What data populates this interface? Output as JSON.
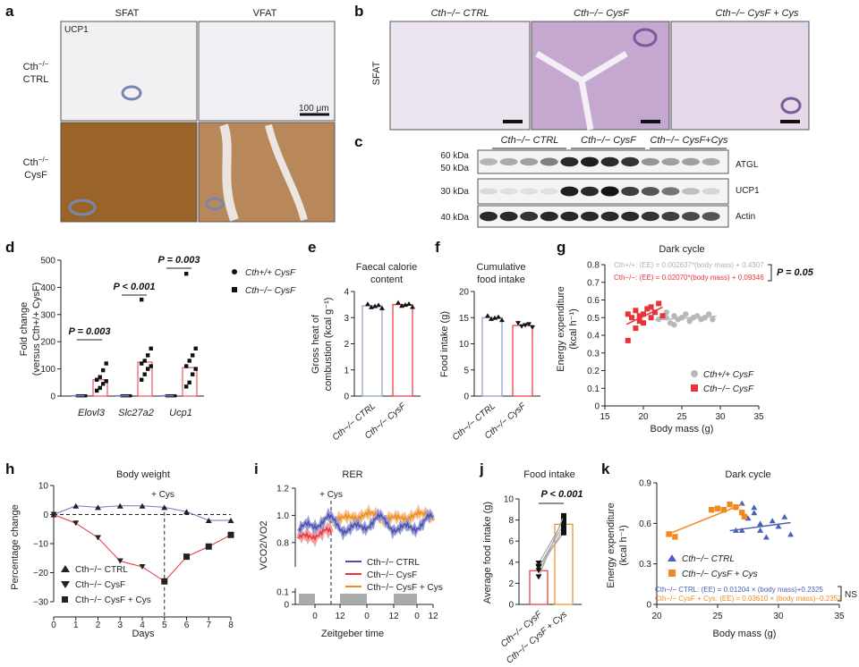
{
  "panels": {
    "a": "a",
    "b": "b",
    "c": "c",
    "d": "d",
    "e": "e",
    "f": "f",
    "g": "g",
    "h": "h",
    "i": "i",
    "j": "j",
    "k": "k"
  },
  "a": {
    "col1": "SFAT",
    "col2": "VFAT",
    "stain": "UCP1",
    "row1_l1": "Cth",
    "row1_sup": "−/−",
    "row1_l2": "CTRL",
    "row2_l1": "Cth",
    "row2_sup": "−/−",
    "row2_l2": "CysF",
    "scale_bar": "100 μm",
    "colors": {
      "ctrl_tissue": "#f1eef2",
      "stained_tissue": "#9c6a2c"
    }
  },
  "b": {
    "col1": "Cth−/− CTRL",
    "col2": "Cth−/− CysF",
    "col3": "Cth−/− CysF + Cys",
    "side": "SFAT",
    "colors": {
      "ctrl": "#ece4f0",
      "cysf": "#c3a9cf"
    }
  },
  "c": {
    "groups": [
      "Cth−/− CTRL",
      "Cth−/− CysF",
      "Cth−/− CysF+Cys"
    ],
    "rows": [
      {
        "kda": [
          "60 kDa",
          "50 kDa"
        ],
        "label": "ATGL",
        "intensity": [
          0.25,
          0.3,
          0.35,
          0.5,
          0.9,
          0.95,
          0.9,
          0.85,
          0.4,
          0.35,
          0.35,
          0.3
        ]
      },
      {
        "kda": [
          "30 kDa"
        ],
        "label": "UCP1",
        "intensity": [
          0.08,
          0.05,
          0.05,
          0.05,
          0.95,
          0.9,
          1.0,
          0.8,
          0.7,
          0.55,
          0.2,
          0.1
        ]
      },
      {
        "kda": [
          "40 kDa"
        ],
        "label": "Actin",
        "intensity": [
          0.9,
          0.9,
          0.85,
          0.9,
          0.9,
          0.9,
          0.9,
          0.9,
          0.85,
          0.8,
          0.75,
          0.7
        ]
      }
    ]
  },
  "d": {
    "ylabel_line1": "Fold change",
    "ylabel_line2": "(versus Cth+/+ CysF)",
    "yticks": [
      "0",
      "100",
      "200",
      "300",
      "400",
      "500"
    ],
    "genes": [
      "Elovl3",
      "Slc27a2",
      "Ucp1"
    ],
    "pvals": [
      "P = 0.003",
      "P < 0.001",
      "P = 0.003"
    ],
    "legend": [
      "Cth+/+ CysF",
      "Cth−/− CysF"
    ],
    "ko_means": [
      60,
      125,
      105
    ],
    "ko_points": [
      [
        20,
        30,
        45,
        55,
        60,
        70,
        95,
        120
      ],
      [
        60,
        80,
        100,
        110,
        120,
        130,
        150,
        175,
        355
      ],
      [
        35,
        50,
        80,
        100,
        110,
        130,
        150,
        175,
        450
      ]
    ]
  },
  "e": {
    "title_l1": "Faecal calorie",
    "title_l2": "content",
    "ylabel_l1": "Gross heat of",
    "ylabel_l2": "combustion (kcal g⁻¹)",
    "yticks": [
      "0",
      "1",
      "2",
      "3",
      "4"
    ],
    "xcats": [
      "Cth−/− CTRL",
      "Cth−/− CysF"
    ],
    "values": [
      3.45,
      3.5
    ]
  },
  "f": {
    "title_l1": "Cumulative",
    "title_l2": "food intake",
    "ylabel": "Food intake (g)",
    "yticks": [
      "0",
      "5",
      "10",
      "15",
      "20"
    ],
    "xcats": [
      "Cth−/− CTRL",
      "Cth−/− CysF"
    ],
    "values": [
      15,
      13.5
    ]
  },
  "g": {
    "title": "Dark cycle",
    "ylabel_l1": "Energy expenditure",
    "ylabel_l2": "(kcal h⁻¹)",
    "xlabel": "Body mass (g)",
    "yticks": [
      "0",
      "0.1",
      "0.2",
      "0.3",
      "0.4",
      "0.5",
      "0.6",
      "0.7",
      "0.8"
    ],
    "xticks": [
      "15",
      "20",
      "25",
      "30",
      "35"
    ],
    "eq1": "Cth+/+: (EE) = 0.002637*(body mass) + 0.4307",
    "eq2": "Cth−/−: (EE) = 0.02070*(body mass) + 0.09346",
    "pval": "P = 0.05",
    "legend": [
      "Cth+/+ CysF",
      "Cth−/− CysF"
    ],
    "colors": {
      "wt": "#b8b8b8",
      "ko": "#e8333a"
    }
  },
  "h": {
    "title": "Body weight",
    "ylabel": "Percentage change",
    "xlabel": "Days",
    "annot": "+ Cys",
    "yticks": [
      "10",
      "0",
      "−10",
      "−20",
      "−30"
    ],
    "xticks": [
      "0",
      "1",
      "2",
      "3",
      "4",
      "5",
      "6",
      "7",
      "8"
    ],
    "legend": [
      "Cth−/− CTRL",
      "Cth−/− CysF",
      "Cth−/− CysF + Cys"
    ],
    "ctrl": [
      0,
      3,
      2.5,
      3,
      3,
      2.5,
      1,
      -2,
      -2
    ],
    "cysf": [
      0,
      -3,
      -8,
      -16,
      -18,
      -23,
      null,
      null,
      null
    ],
    "cys": [
      null,
      null,
      null,
      null,
      null,
      -23,
      -14.5,
      -11,
      -7
    ]
  },
  "i": {
    "title": "RER",
    "ylabel": "VCO2/VO2",
    "xlabel": "Zeitgeber time",
    "annot": "+ Cys",
    "yticks": [
      "1.2",
      "1.0",
      "0.8",
      "0.1",
      "0"
    ],
    "xticks": [
      "0",
      "12",
      "0",
      "12",
      "0",
      "12"
    ],
    "legend": [
      "Cth−/− CTRL",
      "Cth−/− CysF",
      "Cth−/− CysF + Cys"
    ],
    "colors": {
      "ctrl": "#4b4fa8",
      "cysf": "#e8333a",
      "cys": "#f08a1e"
    }
  },
  "j": {
    "title": "Food intake",
    "ylabel": "Average food intake (g)",
    "pval": "P < 0.001",
    "yticks": [
      "0",
      "2",
      "4",
      "6",
      "8",
      "10"
    ],
    "xcats": [
      "Cth−/− CysF",
      "Cth−/− CysF + Cys"
    ],
    "values": [
      3.2,
      7.6
    ],
    "pairs": [
      [
        3.9,
        8.0
      ],
      [
        3.5,
        7.6
      ],
      [
        3.2,
        7.2
      ],
      [
        2.6,
        8.4
      ],
      [
        3.6,
        6.8
      ]
    ]
  },
  "k": {
    "title": "Dark cycle",
    "ylabel_l1": "Energy expenditure",
    "ylabel_l2": "(kcal h⁻¹)",
    "xlabel": "Body mass (g)",
    "yticks": [
      "0",
      "0.3",
      "0.6",
      "0.9"
    ],
    "xticks": [
      "20",
      "25",
      "30",
      "35"
    ],
    "legend": [
      "Cth−/− CTRL",
      "Cth−/− CysF + Cys"
    ],
    "eq1": "Cth−/− CTRL: (EE) = 0.01204 × (body mass)+0.2325",
    "eq2": "Cth−/− CysF + Cys: (EE) = 0.03610 × (body mass)−0.2352",
    "ns": "NS",
    "colors": {
      "ctrl": "#4b60b5",
      "cys": "#f08a1e"
    }
  }
}
